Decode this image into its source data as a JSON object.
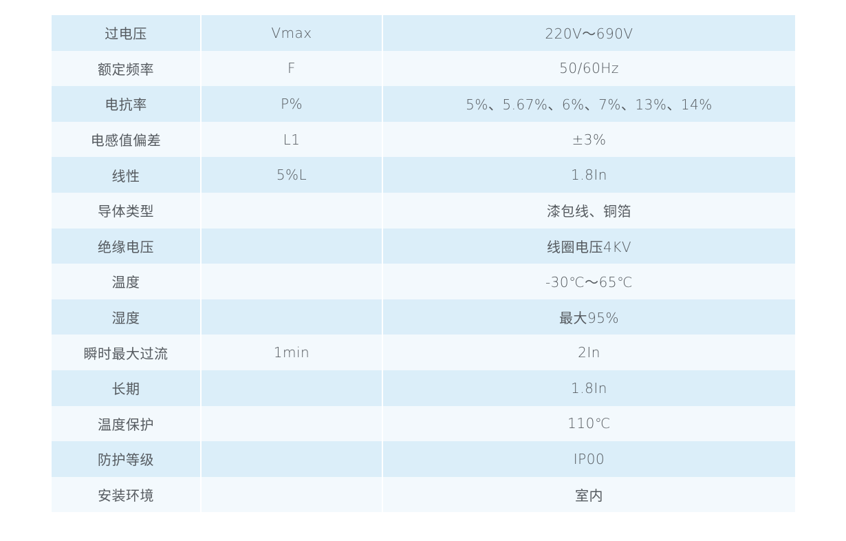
{
  "table": {
    "rows": [
      {
        "name": "过电压",
        "symbol": "Vmax",
        "value": "220V～690V"
      },
      {
        "name": "额定频率",
        "symbol": "F",
        "value": "50/60Hz"
      },
      {
        "name": "电抗率",
        "symbol": "P%",
        "value": "5%、5.67%、6%、7%、13%、14%"
      },
      {
        "name": "电感值偏差",
        "symbol": "L1",
        "value": "±3%"
      },
      {
        "name": "线性",
        "symbol": "5%L",
        "value": "1.8In"
      },
      {
        "name": "导体类型",
        "symbol": "",
        "value": "漆包线、铜箔"
      },
      {
        "name": "绝缘电压",
        "symbol": "",
        "value": "线圈电压4KV"
      },
      {
        "name": "温度",
        "symbol": "",
        "value": "-30℃～65℃"
      },
      {
        "name": "湿度",
        "symbol": "",
        "value": "最大95%"
      },
      {
        "name": "瞬时最大过流",
        "symbol": "1min",
        "value": "2In"
      },
      {
        "name": "长期",
        "symbol": "",
        "value": "1.8In"
      },
      {
        "name": "温度保护",
        "symbol": "",
        "value": "110℃"
      },
      {
        "name": "防护等级",
        "symbol": "",
        "value": "IP00"
      },
      {
        "name": "安装环境",
        "symbol": "",
        "value": "室内"
      }
    ]
  },
  "colors": {
    "row_dark": "#dbeef9",
    "row_light": "#f3f9fd",
    "text": "#555a5f"
  }
}
